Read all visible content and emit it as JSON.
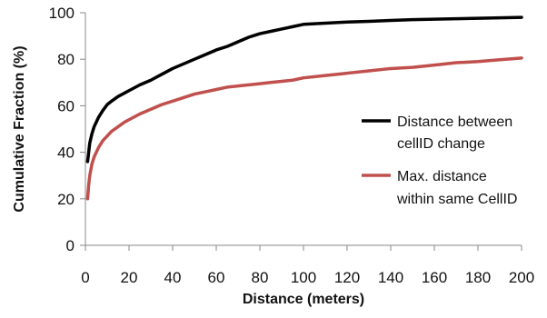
{
  "chart_data": {
    "type": "line",
    "title": "",
    "xlabel": "Distance (meters)",
    "ylabel": "Cumulative Fraction (%)",
    "xlim": [
      0,
      200
    ],
    "ylim": [
      0,
      100
    ],
    "x_ticks": [
      0,
      20,
      40,
      60,
      80,
      100,
      120,
      140,
      160,
      180,
      200
    ],
    "y_ticks": [
      0,
      20,
      40,
      60,
      80,
      100
    ],
    "grid": false,
    "legend_position": "right",
    "series": [
      {
        "name": "Distance between cellID change",
        "legend_lines": [
          "Distance between",
          "cellID change"
        ],
        "color": "#000000",
        "x": [
          1,
          1.5,
          2,
          3,
          4,
          5,
          6,
          8,
          10,
          12,
          15,
          18,
          20,
          25,
          30,
          35,
          40,
          45,
          50,
          55,
          60,
          65,
          70,
          75,
          80,
          85,
          90,
          95,
          100,
          110,
          120,
          130,
          140,
          150,
          160,
          170,
          180,
          190,
          200
        ],
        "y": [
          36,
          40,
          44,
          48,
          51,
          53,
          55,
          58,
          60.5,
          62,
          64,
          65.5,
          66.5,
          69,
          71,
          73.5,
          76,
          78,
          80,
          82,
          84,
          85.5,
          87.5,
          89.5,
          91,
          92,
          93,
          94,
          95,
          95.5,
          96,
          96.3,
          96.7,
          97,
          97.2,
          97.4,
          97.6,
          97.8,
          98
        ]
      },
      {
        "name": "Max. distance within same CellID",
        "legend_lines": [
          "Max. distance",
          "within same CellID"
        ],
        "color": "#c0504d",
        "x": [
          1,
          1.5,
          2,
          3,
          4,
          5,
          6,
          8,
          10,
          12,
          15,
          18,
          20,
          25,
          30,
          35,
          40,
          45,
          50,
          55,
          60,
          65,
          70,
          75,
          80,
          85,
          90,
          95,
          100,
          110,
          120,
          130,
          140,
          150,
          160,
          170,
          180,
          190,
          200
        ],
        "y": [
          20,
          26,
          30,
          35,
          38,
          40,
          42,
          45,
          47,
          49,
          51,
          53,
          54,
          56.5,
          58.5,
          60.5,
          62,
          63.5,
          65,
          66,
          67,
          68,
          68.5,
          69,
          69.5,
          70,
          70.5,
          71,
          72,
          73,
          74,
          75,
          76,
          76.5,
          77.5,
          78.5,
          79,
          79.8,
          80.5
        ]
      }
    ]
  }
}
